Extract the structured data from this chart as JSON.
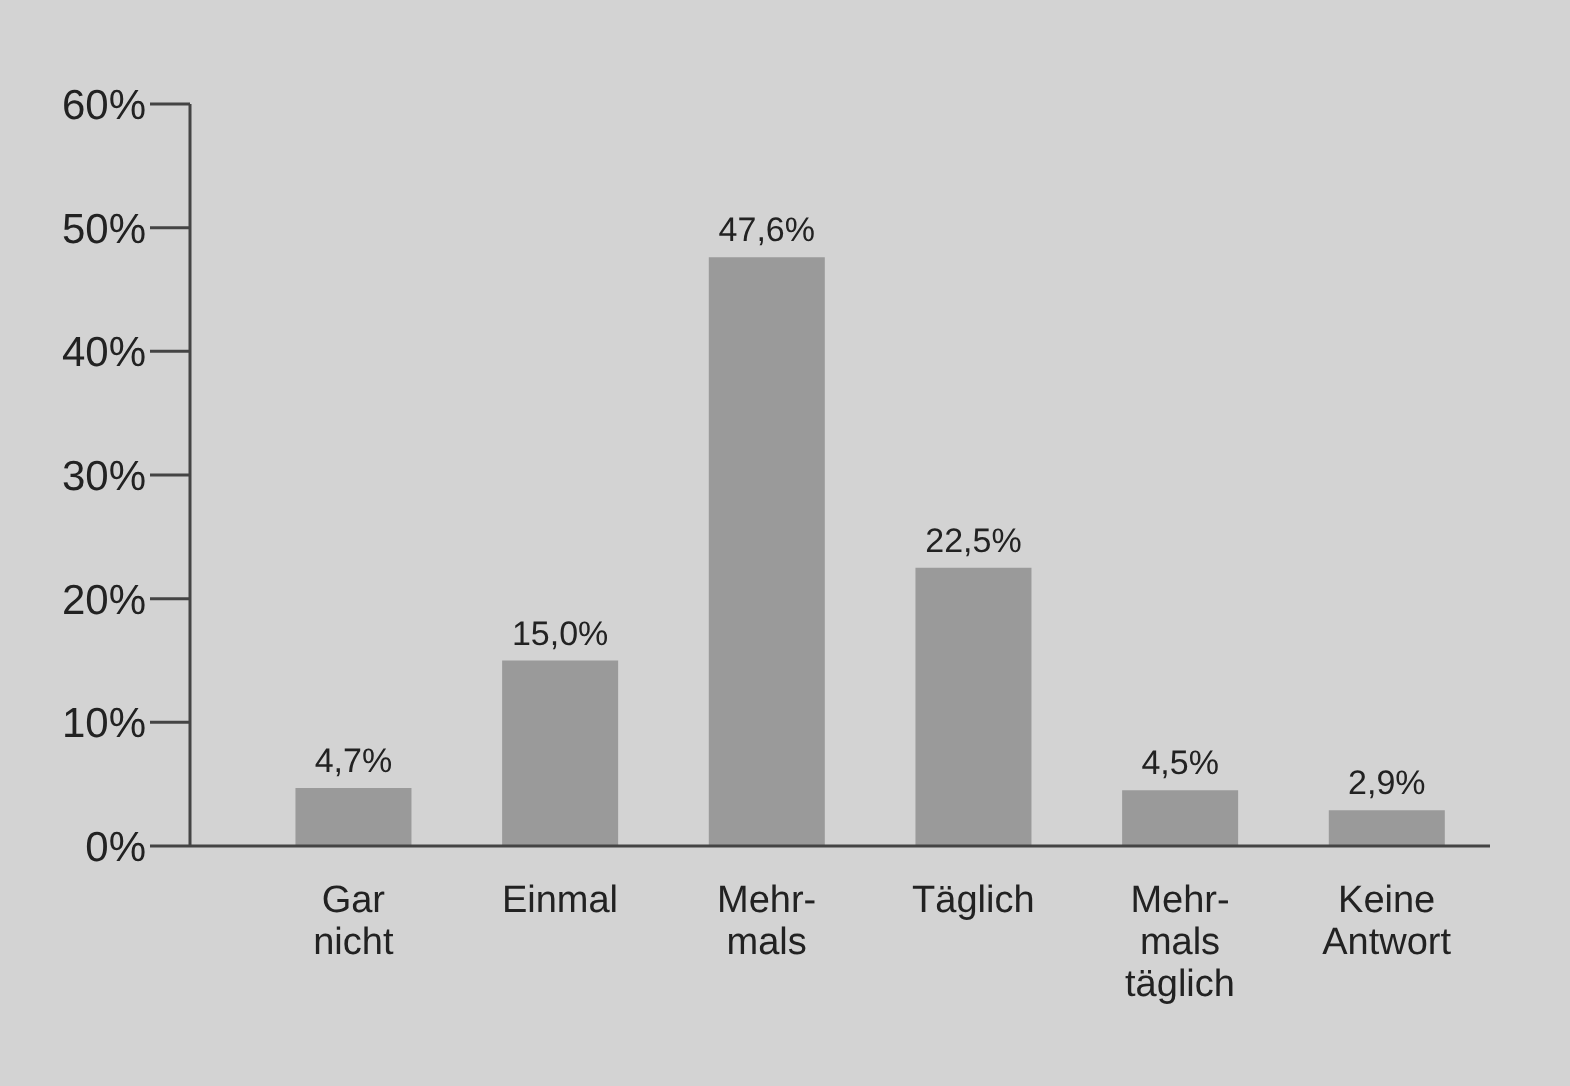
{
  "chart_data": {
    "type": "bar",
    "categories": [
      "Gar\nnicht",
      "Einmal",
      "Mehr-\nmals",
      "Täglich",
      "Mehr-\nmals\ntäglich",
      "Keine\nAntwort"
    ],
    "values": [
      4.7,
      15.0,
      47.6,
      22.5,
      4.5,
      2.9
    ],
    "value_labels": [
      "4,7%",
      "15,0%",
      "47,6%",
      "22,5%",
      "4,5%",
      "2,9%"
    ],
    "color": "#9a9a9a",
    "ylim": [
      0,
      60
    ],
    "yticks": [
      {
        "value": 0,
        "label": "0%"
      },
      {
        "value": 10,
        "label": "10%"
      },
      {
        "value": 20,
        "label": "20%"
      },
      {
        "value": 30,
        "label": "30%"
      },
      {
        "value": 40,
        "label": "40%"
      },
      {
        "value": 50,
        "label": "50%"
      },
      {
        "value": 60,
        "label": "60%"
      }
    ],
    "grid": false,
    "legend": false
  }
}
